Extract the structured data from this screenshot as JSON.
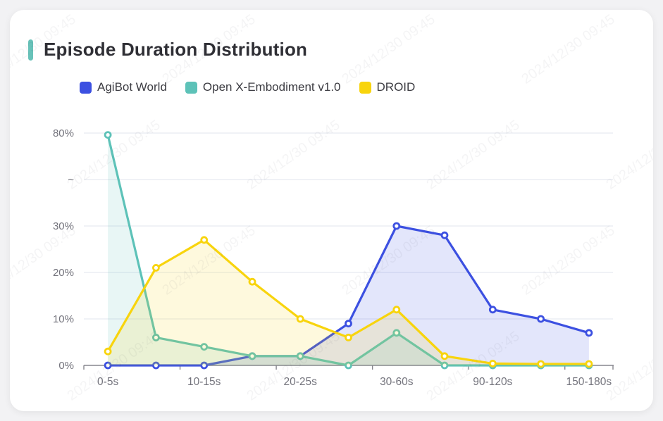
{
  "title": "Episode Duration Distribution",
  "watermark": {
    "text": "2024/12/30 09:45"
  },
  "style": {
    "accent_color": "#68c2b9",
    "page_background": "#f2f2f4",
    "card_background": "#ffffff",
    "grid_color": "#e8eaf1",
    "axis_color": "#85858d",
    "label_color": "#73737c",
    "title_color": "#2f2f35"
  },
  "chart_data": {
    "type": "line",
    "title": "Episode Duration Distribution",
    "categories": [
      "0-5s",
      "",
      "10-15s",
      "",
      "20-25s",
      "",
      "30-60s",
      "",
      "90-120s",
      "",
      "150-180s"
    ],
    "series": [
      {
        "name": "AgiBot World",
        "color": "#3c50e1",
        "values": [
          0,
          0,
          0,
          2,
          2,
          9,
          30,
          28,
          12,
          10,
          7
        ]
      },
      {
        "name": "Open X-Embodiment v1.0",
        "color": "#5dc2b8",
        "values": [
          79,
          6,
          4,
          2,
          2,
          0,
          7,
          0,
          0,
          0,
          0
        ]
      },
      {
        "name": "DROID",
        "color": "#f8d40d",
        "values": [
          3,
          21,
          27,
          18,
          10,
          6,
          12,
          2,
          0.4,
          0.3,
          0.3
        ]
      }
    ],
    "yticks": [
      "0%",
      "10%",
      "20%",
      "30%",
      "~",
      "80%"
    ],
    "y_axis_break": {
      "between": [
        30,
        80
      ],
      "break_tick_label": "~"
    },
    "xlabel": "",
    "ylabel": "",
    "unit": "percent",
    "grid": true,
    "legend_position": "top-left",
    "legend_entries": [
      "AgiBot World",
      "Open X-Embodiment v1.0",
      "DROID"
    ],
    "area_fill_opacity": 0.14,
    "marker": "open-circle"
  }
}
